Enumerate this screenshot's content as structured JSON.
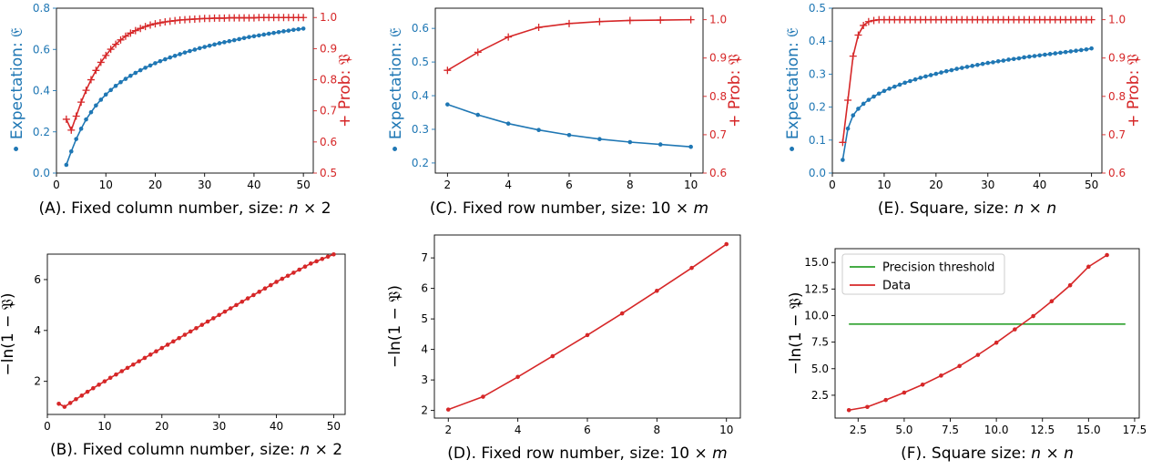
{
  "colors": {
    "expectation": "#1f77b4",
    "probability": "#d62728",
    "threshold": "#2ca02c",
    "axis": "#000000"
  },
  "chart_data": [
    {
      "id": "A",
      "type": "line",
      "caption": "(A). Fixed column number, size: n × 2",
      "caption_parts": {
        "pre": "(A). Fixed column number, size: ",
        "var1": "n",
        "mid": " × 2",
        "var2": ""
      },
      "ylabel": "• Expectation: 𝔈",
      "y2label": "+ Prob: 𝔓",
      "xlim": [
        0,
        52
      ],
      "ylim": [
        0,
        0.8
      ],
      "y2lim": [
        0.5,
        1.03
      ],
      "xticks": [
        0,
        10,
        20,
        30,
        40,
        50
      ],
      "xtick_labels": [
        "0",
        "10",
        "20",
        "30",
        "40",
        "50"
      ],
      "yticks": [
        0,
        0.2,
        0.4,
        0.6,
        0.8
      ],
      "ytick_labels": [
        "0.0",
        "0.2",
        "0.4",
        "0.6",
        "0.8"
      ],
      "y2ticks": [
        0.5,
        0.6,
        0.7,
        0.8,
        0.9,
        1.0
      ],
      "y2tick_labels": [
        "0.5",
        "0.6",
        "0.7",
        "0.8",
        "0.9",
        "1.0"
      ],
      "series": [
        {
          "axis": "left",
          "color": "#1f77b4",
          "marker": "dot",
          "x": [
            2,
            3,
            4,
            5,
            6,
            7,
            8,
            9,
            10,
            11,
            12,
            13,
            14,
            15,
            16,
            17,
            18,
            19,
            20,
            21,
            22,
            23,
            24,
            25,
            26,
            27,
            28,
            29,
            30,
            31,
            32,
            33,
            34,
            35,
            36,
            37,
            38,
            39,
            40,
            41,
            42,
            43,
            44,
            45,
            46,
            47,
            48,
            49,
            50
          ],
          "y": [
            0.04,
            0.105,
            0.165,
            0.215,
            0.26,
            0.295,
            0.328,
            0.356,
            0.381,
            0.403,
            0.423,
            0.441,
            0.457,
            0.472,
            0.486,
            0.499,
            0.511,
            0.522,
            0.533,
            0.543,
            0.552,
            0.561,
            0.569,
            0.577,
            0.585,
            0.592,
            0.599,
            0.606,
            0.612,
            0.618,
            0.624,
            0.63,
            0.635,
            0.64,
            0.645,
            0.65,
            0.655,
            0.66,
            0.664,
            0.668,
            0.672,
            0.676,
            0.68,
            0.684,
            0.688,
            0.691,
            0.695,
            0.698,
            0.701
          ]
        },
        {
          "axis": "right",
          "color": "#d62728",
          "marker": "plus",
          "x": [
            2,
            3,
            4,
            5,
            6,
            7,
            8,
            9,
            10,
            11,
            12,
            13,
            14,
            15,
            16,
            17,
            18,
            19,
            20,
            21,
            22,
            23,
            24,
            25,
            26,
            27,
            28,
            29,
            30,
            31,
            32,
            33,
            34,
            35,
            36,
            37,
            38,
            39,
            40,
            41,
            42,
            43,
            44,
            45,
            46,
            47,
            48,
            49,
            50
          ],
          "y": [
            0.673,
            0.638,
            0.683,
            0.728,
            0.766,
            0.8,
            0.83,
            0.856,
            0.878,
            0.898,
            0.914,
            0.928,
            0.94,
            0.95,
            0.958,
            0.965,
            0.971,
            0.976,
            0.98,
            0.983,
            0.986,
            0.988,
            0.99,
            0.992,
            0.993,
            0.994,
            0.995,
            0.996,
            0.997,
            0.997,
            0.998,
            0.998,
            0.998,
            0.999,
            0.999,
            0.999,
            0.999,
            0.999,
            0.999,
            1.0,
            1.0,
            1.0,
            1.0,
            1.0,
            1.0,
            1.0,
            1.0,
            1.0,
            1.0
          ]
        }
      ]
    },
    {
      "id": "C",
      "type": "line",
      "caption": "(C). Fixed row number, size: 10 × m",
      "caption_parts": {
        "pre": "(C). Fixed row number, size: ",
        "var1": "",
        "mid": "10 × ",
        "var2": "m"
      },
      "ylabel": "• Expectation: 𝔈",
      "y2label": "+ Prob: 𝔓",
      "xlim": [
        1.6,
        10.4
      ],
      "ylim": [
        0.17,
        0.66
      ],
      "y2lim": [
        0.6,
        1.03
      ],
      "xticks": [
        2,
        4,
        6,
        8,
        10
      ],
      "xtick_labels": [
        "2",
        "4",
        "6",
        "8",
        "10"
      ],
      "yticks": [
        0.2,
        0.3,
        0.4,
        0.5,
        0.6
      ],
      "ytick_labels": [
        "0.2",
        "0.3",
        "0.4",
        "0.5",
        "0.6"
      ],
      "y2ticks": [
        0.6,
        0.7,
        0.8,
        0.9,
        1.0
      ],
      "y2tick_labels": [
        "0.6",
        "0.7",
        "0.8",
        "0.9",
        "1.0"
      ],
      "series": [
        {
          "axis": "left",
          "color": "#1f77b4",
          "marker": "dot",
          "x": [
            2,
            3,
            4,
            5,
            6,
            7,
            8,
            9,
            10
          ],
          "y": [
            0.374,
            0.343,
            0.317,
            0.298,
            0.283,
            0.271,
            0.262,
            0.255,
            0.248
          ]
        },
        {
          "axis": "right",
          "color": "#d62728",
          "marker": "plus",
          "x": [
            2,
            3,
            4,
            5,
            6,
            7,
            8,
            9,
            10
          ],
          "y": [
            0.868,
            0.915,
            0.955,
            0.98,
            0.99,
            0.995,
            0.998,
            0.999,
            1.0
          ]
        }
      ]
    },
    {
      "id": "E",
      "type": "line",
      "caption": "(E). Square, size: n × n",
      "caption_parts": {
        "pre": "(E). Square, size: ",
        "var1": "n",
        "mid": " × ",
        "var2": "n"
      },
      "ylabel": "• Expectation: 𝔈",
      "y2label": "+ Prob: 𝔓",
      "xlim": [
        0,
        52
      ],
      "ylim": [
        0,
        0.5
      ],
      "y2lim": [
        0.6,
        1.03
      ],
      "xticks": [
        0,
        10,
        20,
        30,
        40,
        50
      ],
      "xtick_labels": [
        "0",
        "10",
        "20",
        "30",
        "40",
        "50"
      ],
      "yticks": [
        0,
        0.1,
        0.2,
        0.3,
        0.4,
        0.5
      ],
      "ytick_labels": [
        "0.0",
        "0.1",
        "0.2",
        "0.3",
        "0.4",
        "0.5"
      ],
      "y2ticks": [
        0.6,
        0.7,
        0.8,
        0.9,
        1.0
      ],
      "y2tick_labels": [
        "0.6",
        "0.7",
        "0.8",
        "0.9",
        "1.0"
      ],
      "series": [
        {
          "axis": "left",
          "color": "#1f77b4",
          "marker": "dot",
          "x": [
            2,
            3,
            4,
            5,
            6,
            7,
            8,
            9,
            10,
            11,
            12,
            13,
            14,
            15,
            16,
            17,
            18,
            19,
            20,
            21,
            22,
            23,
            24,
            25,
            26,
            27,
            28,
            29,
            30,
            31,
            32,
            33,
            34,
            35,
            36,
            37,
            38,
            39,
            40,
            41,
            42,
            43,
            44,
            45,
            46,
            47,
            48,
            49,
            50
          ],
          "y": [
            0.04,
            0.135,
            0.175,
            0.195,
            0.21,
            0.222,
            0.232,
            0.241,
            0.249,
            0.256,
            0.262,
            0.268,
            0.274,
            0.279,
            0.284,
            0.289,
            0.293,
            0.297,
            0.301,
            0.305,
            0.309,
            0.312,
            0.316,
            0.319,
            0.322,
            0.325,
            0.328,
            0.331,
            0.334,
            0.336,
            0.339,
            0.341,
            0.344,
            0.346,
            0.348,
            0.351,
            0.353,
            0.355,
            0.357,
            0.359,
            0.361,
            0.363,
            0.365,
            0.367,
            0.369,
            0.371,
            0.373,
            0.375,
            0.378
          ]
        },
        {
          "axis": "right",
          "color": "#d62728",
          "marker": "plus",
          "x": [
            2,
            3,
            4,
            5,
            6,
            7,
            8,
            9,
            10,
            11,
            12,
            13,
            14,
            15,
            16,
            17,
            18,
            19,
            20,
            21,
            22,
            23,
            24,
            25,
            26,
            27,
            28,
            29,
            30,
            31,
            32,
            33,
            34,
            35,
            36,
            37,
            38,
            39,
            40,
            41,
            42,
            43,
            44,
            45,
            46,
            47,
            48,
            49,
            50
          ],
          "y": [
            0.68,
            0.79,
            0.905,
            0.96,
            0.985,
            0.995,
            0.998,
            1.0,
            1.0,
            1.0,
            1.0,
            1.0,
            1.0,
            1.0,
            1.0,
            1.0,
            1.0,
            1.0,
            1.0,
            1.0,
            1.0,
            1.0,
            1.0,
            1.0,
            1.0,
            1.0,
            1.0,
            1.0,
            1.0,
            1.0,
            1.0,
            1.0,
            1.0,
            1.0,
            1.0,
            1.0,
            1.0,
            1.0,
            1.0,
            1.0,
            1.0,
            1.0,
            1.0,
            1.0,
            1.0,
            1.0,
            1.0,
            1.0,
            1.0
          ]
        }
      ]
    },
    {
      "id": "B",
      "type": "line",
      "caption": "(B). Fixed column number, size: n × 2",
      "caption_parts": {
        "pre": "(B). Fixed column number, size: ",
        "var1": "n",
        "mid": " × 2",
        "var2": ""
      },
      "ylabel": "−ln(1 − 𝔓)",
      "xlim": [
        0,
        52
      ],
      "ylim": [
        0.7,
        7.0
      ],
      "xticks": [
        0,
        10,
        20,
        30,
        40,
        50
      ],
      "xtick_labels": [
        "0",
        "10",
        "20",
        "30",
        "40",
        "50"
      ],
      "yticks": [
        2,
        4,
        6
      ],
      "ytick_labels": [
        "2",
        "4",
        "6"
      ],
      "series": [
        {
          "color": "#d62728",
          "marker": "dot",
          "x": [
            2,
            3,
            4,
            5,
            6,
            7,
            8,
            9,
            10,
            11,
            12,
            13,
            14,
            15,
            16,
            17,
            18,
            19,
            20,
            21,
            22,
            23,
            24,
            25,
            26,
            27,
            28,
            29,
            30,
            31,
            32,
            33,
            34,
            35,
            36,
            37,
            38,
            39,
            40,
            41,
            42,
            43,
            44,
            45,
            46,
            47,
            48,
            49,
            50
          ],
          "y": [
            1.12,
            1.0,
            1.15,
            1.3,
            1.44,
            1.59,
            1.73,
            1.87,
            2.0,
            2.14,
            2.27,
            2.4,
            2.53,
            2.66,
            2.79,
            2.92,
            3.05,
            3.18,
            3.31,
            3.44,
            3.57,
            3.7,
            3.83,
            3.96,
            4.09,
            4.22,
            4.35,
            4.48,
            4.61,
            4.74,
            4.87,
            5.0,
            5.13,
            5.26,
            5.39,
            5.52,
            5.65,
            5.78,
            5.91,
            6.03,
            6.15,
            6.27,
            6.39,
            6.51,
            6.63,
            6.72,
            6.81,
            6.9,
            6.99
          ]
        }
      ]
    },
    {
      "id": "D",
      "type": "line",
      "caption": "(D). Fixed row number, size: 10 × m",
      "caption_parts": {
        "pre": "(D). Fixed row number, size: ",
        "var1": "",
        "mid": "10 × ",
        "var2": "m"
      },
      "ylabel": "−ln(1 − 𝔓)",
      "xlim": [
        1.6,
        10.4
      ],
      "ylim": [
        1.75,
        7.75
      ],
      "xticks": [
        2,
        4,
        6,
        8,
        10
      ],
      "xtick_labels": [
        "2",
        "4",
        "6",
        "8",
        "10"
      ],
      "yticks": [
        2,
        3,
        4,
        5,
        6,
        7
      ],
      "ytick_labels": [
        "2",
        "3",
        "4",
        "5",
        "6",
        "7"
      ],
      "series": [
        {
          "color": "#d62728",
          "marker": "dot",
          "x": [
            2,
            3,
            4,
            5,
            6,
            7,
            8,
            9,
            10
          ],
          "y": [
            2.03,
            2.45,
            3.1,
            3.78,
            4.47,
            5.18,
            5.92,
            6.67,
            7.45
          ]
        }
      ]
    },
    {
      "id": "F",
      "type": "line",
      "caption": "(F). Square size: n × n",
      "caption_parts": {
        "pre": "(F). Square size: ",
        "var1": "n",
        "mid": " × ",
        "var2": "n"
      },
      "ylabel": "−ln(1 − 𝔓)",
      "xlim": [
        1.25,
        17.75
      ],
      "ylim": [
        0.35,
        16.3
      ],
      "xticks": [
        2.5,
        5.0,
        7.5,
        10.0,
        12.5,
        15.0,
        17.5
      ],
      "xtick_labels": [
        "2.5",
        "5.0",
        "7.5",
        "10.0",
        "12.5",
        "15.0",
        "17.5"
      ],
      "yticks": [
        2.5,
        5.0,
        7.5,
        10.0,
        12.5,
        15.0
      ],
      "ytick_labels": [
        "2.5",
        "5.0",
        "7.5",
        "10.0",
        "12.5",
        "15.0"
      ],
      "legend": {
        "position": "upper-left",
        "entries": [
          "Precision threshold",
          "Data"
        ]
      },
      "series": [
        {
          "name": "Precision threshold",
          "color": "#2ca02c",
          "marker": "none",
          "x": [
            2,
            17
          ],
          "y": [
            9.2,
            9.2
          ]
        },
        {
          "name": "Data",
          "color": "#d62728",
          "marker": "dot",
          "x": [
            2,
            3,
            4,
            5,
            6,
            7,
            8,
            9,
            10,
            11,
            12,
            13,
            14,
            15,
            16
          ],
          "y": [
            1.1,
            1.4,
            2.05,
            2.75,
            3.5,
            4.35,
            5.25,
            6.3,
            7.45,
            8.7,
            9.95,
            11.35,
            12.85,
            14.6,
            15.7
          ]
        }
      ]
    }
  ]
}
